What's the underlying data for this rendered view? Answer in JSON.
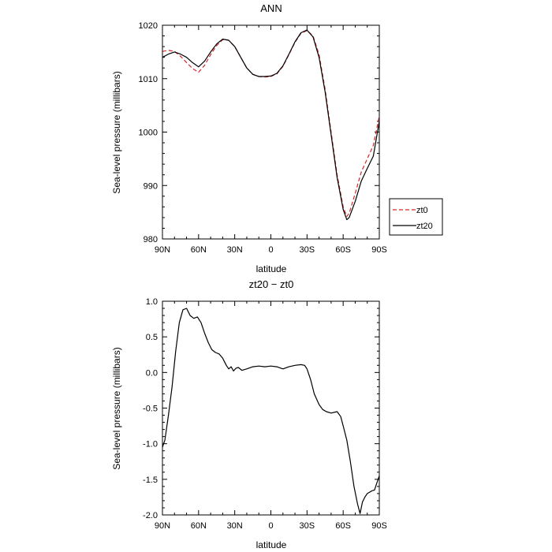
{
  "chart_data": [
    {
      "type": "line",
      "title": "ANN",
      "xlabel": "latitude",
      "ylabel": "Sea-level pressure (millibars)",
      "xlim": [
        90,
        -90
      ],
      "ylim": [
        980,
        1020
      ],
      "x_ticks": [
        90,
        60,
        30,
        0,
        -30,
        -60,
        -90
      ],
      "x_tick_labels": [
        "90N",
        "60N",
        "30N",
        "0",
        "30S",
        "60S",
        "90S"
      ],
      "y_ticks": [
        980,
        990,
        1000,
        1010,
        1020
      ],
      "y_tick_labels": [
        "980",
        "990",
        "1000",
        "1010",
        "1020"
      ],
      "legend": {
        "placement": "outside-right",
        "entries": [
          "zt0",
          "zt20"
        ]
      },
      "series": [
        {
          "name": "zt0",
          "color": "#d62728",
          "dash": "dashed",
          "x": [
            90,
            85,
            80,
            75,
            70,
            65,
            60,
            55,
            50,
            45,
            40,
            35,
            30,
            25,
            20,
            15,
            10,
            5,
            0,
            -5,
            -10,
            -15,
            -20,
            -25,
            -30,
            -35,
            -40,
            -45,
            -50,
            -55,
            -60,
            -63,
            -65,
            -70,
            -75,
            -80,
            -85,
            -90
          ],
          "y": [
            1015.1,
            1015.3,
            1015.1,
            1014.2,
            1013.0,
            1011.9,
            1011.2,
            1012.5,
            1014.5,
            1016.2,
            1017.3,
            1017.2,
            1016.0,
            1014.0,
            1012.0,
            1010.8,
            1010.4,
            1010.3,
            1010.4,
            1010.9,
            1012.3,
            1014.5,
            1016.8,
            1018.5,
            1019.0,
            1018.0,
            1014.5,
            1008.0,
            1000.0,
            992.0,
            986.0,
            984.2,
            984.8,
            988.5,
            992.5,
            995.0,
            997.5,
            1003.0
          ]
        },
        {
          "name": "zt20",
          "color": "#000000",
          "dash": "solid",
          "x": [
            90,
            85,
            80,
            75,
            70,
            65,
            60,
            55,
            50,
            45,
            40,
            35,
            30,
            25,
            20,
            15,
            10,
            5,
            0,
            -5,
            -10,
            -15,
            -20,
            -25,
            -30,
            -35,
            -40,
            -45,
            -50,
            -55,
            -60,
            -63,
            -65,
            -70,
            -75,
            -80,
            -85,
            -90
          ],
          "y": [
            1014.0,
            1014.6,
            1015.0,
            1014.6,
            1014.0,
            1013.0,
            1012.2,
            1013.3,
            1015.0,
            1016.5,
            1017.4,
            1017.2,
            1016.0,
            1014.0,
            1012.0,
            1010.8,
            1010.4,
            1010.4,
            1010.5,
            1011.0,
            1012.4,
            1014.6,
            1016.9,
            1018.6,
            1019.1,
            1017.8,
            1014.0,
            1007.5,
            999.5,
            991.5,
            985.5,
            983.6,
            984.0,
            987.0,
            990.8,
            993.2,
            995.5,
            1002.0
          ]
        }
      ]
    },
    {
      "type": "line",
      "title": "zt20 − zt0",
      "xlabel": "latitude",
      "ylabel": "Sea-level pressure (millibars)",
      "xlim": [
        90,
        -90
      ],
      "ylim": [
        -2.0,
        1.0
      ],
      "x_ticks": [
        90,
        60,
        30,
        0,
        -30,
        -60,
        -90
      ],
      "x_tick_labels": [
        "90N",
        "60N",
        "30N",
        "0",
        "30S",
        "60S",
        "90S"
      ],
      "y_ticks": [
        -2.0,
        -1.5,
        -1.0,
        -0.5,
        0.0,
        0.5,
        1.0
      ],
      "y_tick_labels": [
        "-2.0",
        "-1.5",
        "-1.0",
        "-0.5",
        "0.0",
        "0.5",
        "1.0"
      ],
      "series": [
        {
          "color": "#000000",
          "dash": "solid",
          "x": [
            90,
            88,
            85,
            82,
            79,
            76,
            73,
            70,
            67,
            64,
            61,
            58,
            55,
            52,
            49,
            46,
            43,
            40,
            37,
            35,
            33,
            31,
            29,
            27,
            24,
            20,
            15,
            10,
            5,
            0,
            -5,
            -10,
            -15,
            -20,
            -25,
            -28,
            -30,
            -33,
            -36,
            -40,
            -43,
            -46,
            -50,
            -55,
            -58,
            -60,
            -63,
            -66,
            -69,
            -72,
            -74,
            -76,
            -78,
            -80,
            -82,
            -84,
            -86,
            -88,
            -90
          ],
          "y": [
            -1.05,
            -0.95,
            -0.6,
            -0.2,
            0.3,
            0.7,
            0.88,
            0.9,
            0.8,
            0.76,
            0.78,
            0.7,
            0.55,
            0.42,
            0.32,
            0.28,
            0.26,
            0.2,
            0.1,
            0.05,
            0.08,
            0.02,
            0.06,
            0.07,
            0.03,
            0.05,
            0.08,
            0.09,
            0.08,
            0.09,
            0.08,
            0.05,
            0.08,
            0.1,
            0.11,
            0.1,
            0.05,
            -0.1,
            -0.3,
            -0.45,
            -0.52,
            -0.55,
            -0.57,
            -0.55,
            -0.62,
            -0.75,
            -0.95,
            -1.25,
            -1.6,
            -1.85,
            -1.98,
            -1.82,
            -1.75,
            -1.7,
            -1.68,
            -1.66,
            -1.65,
            -1.55,
            -1.45
          ]
        }
      ]
    }
  ]
}
